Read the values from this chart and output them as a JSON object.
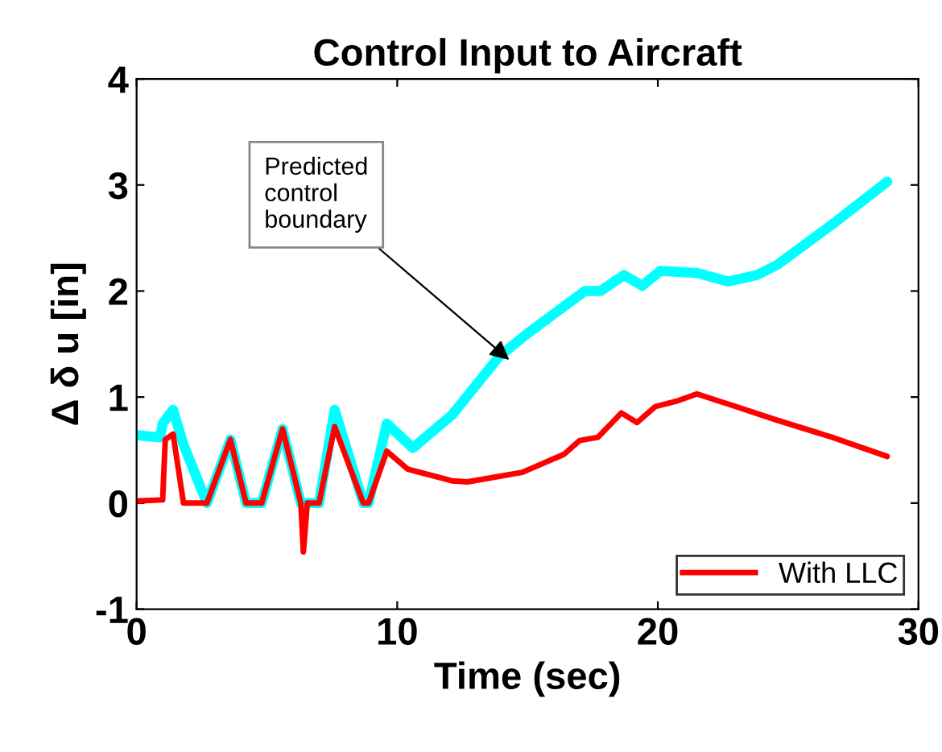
{
  "chart_data": {
    "type": "line",
    "title": "Control Input to Aircraft",
    "xlabel": "Time (sec)",
    "ylabel": "Δ δ u [in]",
    "xlim": [
      0,
      30
    ],
    "ylim": [
      -1,
      4
    ],
    "xticks": [
      0,
      10,
      20,
      30
    ],
    "yticks": [
      -1,
      0,
      1,
      2,
      3,
      4
    ],
    "grid": false,
    "legend": "bottom right",
    "annotations": [
      {
        "text": "Predicted\ncontrol\nboundary",
        "x": 14.3,
        "y": 1.35
      }
    ],
    "series": [
      {
        "color": "#00ffff",
        "x": [
          0,
          0.9,
          1.0,
          1.4,
          1.8,
          2.7,
          3.6,
          4.2,
          4.8,
          5.6,
          6.3,
          7.0,
          7.6,
          8.7,
          8.9,
          9.6,
          10.6,
          12.1,
          13.9,
          15.0,
          17.2,
          17.8,
          18.7,
          19.4,
          20.1,
          21.5,
          22.7,
          23.8,
          24.6,
          26.7,
          28.8
        ],
        "values": [
          0.64,
          0.62,
          0.75,
          0.88,
          0.55,
          0.0,
          0.6,
          0.0,
          0.0,
          0.7,
          0.0,
          0.0,
          0.88,
          0.0,
          0.0,
          0.75,
          0.52,
          0.83,
          1.38,
          1.6,
          2.0,
          2.0,
          2.15,
          2.05,
          2.19,
          2.17,
          2.09,
          2.15,
          2.25,
          2.63,
          3.03
        ]
      },
      {
        "name": "With LLC",
        "color": "#ff0000",
        "x": [
          0,
          1.0,
          1.1,
          1.4,
          1.8,
          2.7,
          3.6,
          4.2,
          4.8,
          5.6,
          6.3,
          6.4,
          6.55,
          7.0,
          7.6,
          8.7,
          8.9,
          9.6,
          10.4,
          12.1,
          12.7,
          14.8,
          16.4,
          17.0,
          17.7,
          18.6,
          19.2,
          19.9,
          20.7,
          21.5,
          23.0,
          24.6,
          26.7,
          28.8
        ],
        "values": [
          0.02,
          0.03,
          0.6,
          0.65,
          0.0,
          0.0,
          0.6,
          0.0,
          0.0,
          0.7,
          0.0,
          -0.46,
          0.0,
          0.0,
          0.72,
          0.0,
          0.0,
          0.49,
          0.32,
          0.21,
          0.2,
          0.29,
          0.46,
          0.59,
          0.62,
          0.85,
          0.76,
          0.91,
          0.96,
          1.03,
          0.91,
          0.78,
          0.62,
          0.44
        ]
      }
    ]
  }
}
